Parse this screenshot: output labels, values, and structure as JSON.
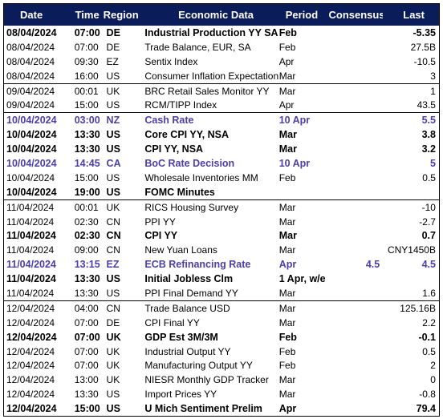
{
  "header": {
    "date": "Date",
    "time": "Time",
    "region": "Region",
    "econ": "Economic Data",
    "period": "Period",
    "consensus": "Consensus",
    "last": "Last"
  },
  "rows": [
    {
      "date": "08/04/2024",
      "time": "07:00",
      "region": "DE",
      "econ": "Industrial Production YY SA",
      "period": "Feb",
      "consensus": "",
      "last": "-5.35",
      "style": "bold"
    },
    {
      "date": "08/04/2024",
      "time": "07:00",
      "region": "DE",
      "econ": "Trade Balance, EUR, SA",
      "period": "Feb",
      "consensus": "",
      "last": "27.5B",
      "style": ""
    },
    {
      "date": "08/04/2024",
      "time": "09:30",
      "region": "EZ",
      "econ": "Sentix Index",
      "period": "Apr",
      "consensus": "",
      "last": "-10.5",
      "style": ""
    },
    {
      "date": "08/04/2024",
      "time": "16:00",
      "region": "US",
      "econ": "Consumer Inflation Expectation",
      "period": "Mar",
      "consensus": "",
      "last": "3",
      "style": ""
    },
    {
      "date": "09/04/2024",
      "time": "00:01",
      "region": "UK",
      "econ": "BRC Retail Sales Monitor YY",
      "period": "Mar",
      "consensus": "",
      "last": "1",
      "style": ""
    },
    {
      "date": "09/04/2024",
      "time": "15:00",
      "region": "US",
      "econ": "RCM/TIPP Index",
      "period": "Apr",
      "consensus": "",
      "last": "43.5",
      "style": ""
    },
    {
      "date": "10/04/2024",
      "time": "03:00",
      "region": "NZ",
      "econ": "Cash Rate",
      "period": "10 Apr",
      "consensus": "",
      "last": "5.5",
      "style": "blue"
    },
    {
      "date": "10/04/2024",
      "time": "13:30",
      "region": "US",
      "econ": "Core CPI YY, NSA",
      "period": "Mar",
      "consensus": "",
      "last": "3.8",
      "style": "bold"
    },
    {
      "date": "10/04/2024",
      "time": "13:30",
      "region": "US",
      "econ": "CPI YY, NSA",
      "period": "Mar",
      "consensus": "",
      "last": "3.2",
      "style": "bold"
    },
    {
      "date": "10/04/2024",
      "time": "14:45",
      "region": "CA",
      "econ": "BoC Rate Decision",
      "period": "10 Apr",
      "consensus": "",
      "last": "5",
      "style": "blue"
    },
    {
      "date": "10/04/2024",
      "time": "15:00",
      "region": "US",
      "econ": "Wholesale Inventories MM",
      "period": "Feb",
      "consensus": "",
      "last": "0.5",
      "style": ""
    },
    {
      "date": "10/04/2024",
      "time": "19:00",
      "region": "US",
      "econ": "FOMC Minutes",
      "period": "",
      "consensus": "",
      "last": "",
      "style": "bold"
    },
    {
      "date": "11/04/2024",
      "time": "00:01",
      "region": "UK",
      "econ": "RICS Housing Survey",
      "period": "Mar",
      "consensus": "",
      "last": "-10",
      "style": ""
    },
    {
      "date": "11/04/2024",
      "time": "02:30",
      "region": "CN",
      "econ": "PPI YY",
      "period": "Mar",
      "consensus": "",
      "last": "-2.7",
      "style": ""
    },
    {
      "date": "11/04/2024",
      "time": "02:30",
      "region": "CN",
      "econ": "CPI YY",
      "period": "Mar",
      "consensus": "",
      "last": "0.7",
      "style": "bold"
    },
    {
      "date": "11/04/2024",
      "time": "09:00",
      "region": "CN",
      "econ": "New Yuan Loans",
      "period": "Mar",
      "consensus": "",
      "last": "CNY1450B",
      "style": ""
    },
    {
      "date": "11/04/2024",
      "time": "13:15",
      "region": "EZ",
      "econ": "ECB Refinancing Rate",
      "period": "Apr",
      "consensus": "4.5",
      "last": "4.5",
      "style": "blue"
    },
    {
      "date": "11/04/2024",
      "time": "13:30",
      "region": "US",
      "econ": "Initial Jobless Clm",
      "period": "1 Apr, w/e",
      "consensus": "",
      "last": "",
      "style": "bold"
    },
    {
      "date": "11/04/2024",
      "time": "13:30",
      "region": "US",
      "econ": "PPI Final Demand YY",
      "period": "Mar",
      "consensus": "",
      "last": "1.6",
      "style": ""
    },
    {
      "date": "12/04/2024",
      "time": "04:00",
      "region": "CN",
      "econ": "Trade Balance USD",
      "period": "Mar",
      "consensus": "",
      "last": "125.16B",
      "style": ""
    },
    {
      "date": "12/04/2024",
      "time": "07:00",
      "region": "DE",
      "econ": "CPI Final YY",
      "period": "Mar",
      "consensus": "",
      "last": "2.2",
      "style": ""
    },
    {
      "date": "12/04/2024",
      "time": "07:00",
      "region": "UK",
      "econ": "GDP Est 3M/3M",
      "period": "Feb",
      "consensus": "",
      "last": "-0.1",
      "style": "bold"
    },
    {
      "date": "12/04/2024",
      "time": "07:00",
      "region": "UK",
      "econ": "Industrial Output YY",
      "period": "Feb",
      "consensus": "",
      "last": "0.5",
      "style": ""
    },
    {
      "date": "12/04/2024",
      "time": "07:00",
      "region": "UK",
      "econ": "Manufacturing Output YY",
      "period": "Feb",
      "consensus": "",
      "last": "2",
      "style": ""
    },
    {
      "date": "12/04/2024",
      "time": "13:00",
      "region": "UK",
      "econ": "NIESR Monthly GDP Tracker",
      "period": "Mar",
      "consensus": "",
      "last": "0",
      "style": ""
    },
    {
      "date": "12/04/2024",
      "time": "13:30",
      "region": "US",
      "econ": "Import Prices YY",
      "period": "Mar",
      "consensus": "",
      "last": "-0.8",
      "style": ""
    },
    {
      "date": "12/04/2024",
      "time": "15:00",
      "region": "US",
      "econ": "U Mich Sentiment Prelim",
      "period": "Apr",
      "consensus": "",
      "last": "79.4",
      "style": "bold"
    }
  ]
}
